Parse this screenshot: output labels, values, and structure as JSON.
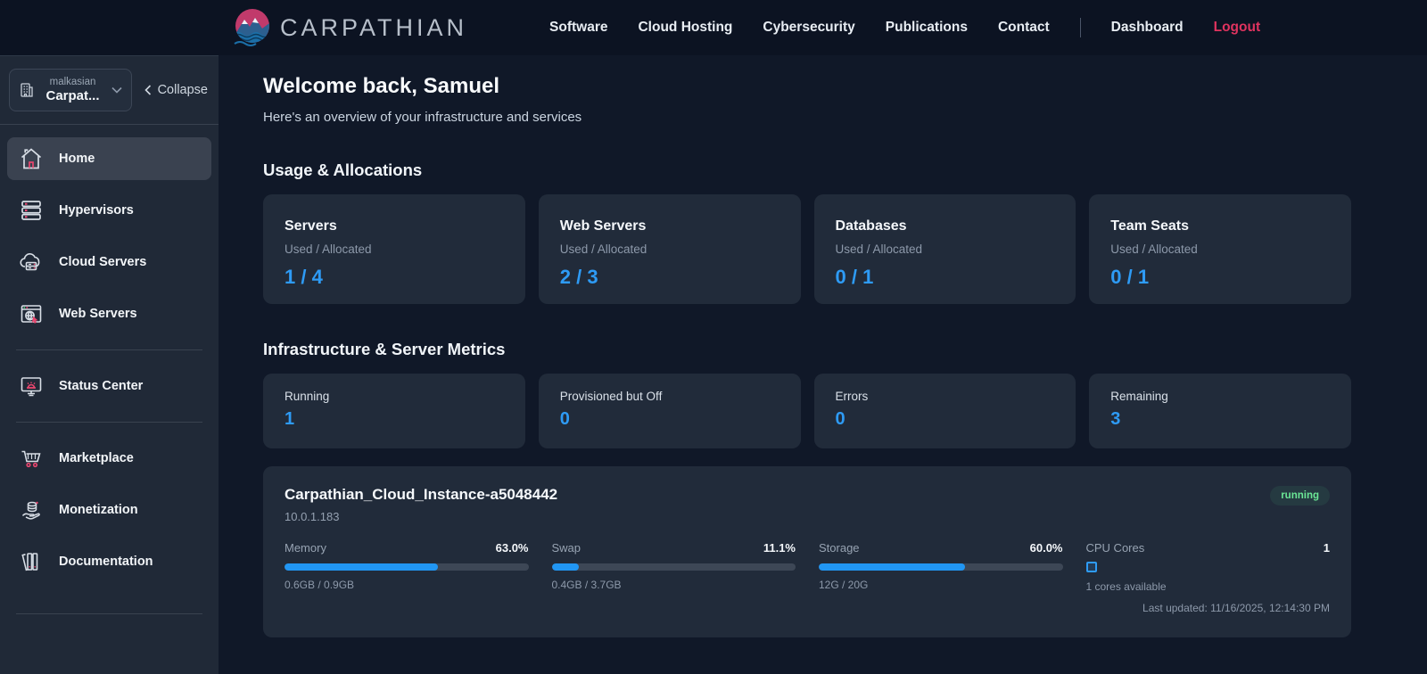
{
  "colors": {
    "accent_blue": "#2e9bf5",
    "accent_pink": "#e0335f",
    "status_green": "#6be796",
    "card_bg": "#212b3a",
    "sidebar_bg": "#202937",
    "topbar_bg": "#0c1322"
  },
  "topbar": {
    "brand": "CARPATHIAN",
    "links": [
      "Software",
      "Cloud Hosting",
      "Cybersecurity",
      "Publications",
      "Contact"
    ],
    "dashboard_label": "Dashboard",
    "logout_label": "Logout"
  },
  "sidebar": {
    "org": {
      "account": "malkasian",
      "name": "Carpat..."
    },
    "collapse_label": "Collapse",
    "items": [
      {
        "label": "Home"
      },
      {
        "label": "Hypervisors"
      },
      {
        "label": "Cloud Servers"
      },
      {
        "label": "Web Servers"
      },
      {
        "label": "Status Center"
      },
      {
        "label": "Marketplace"
      },
      {
        "label": "Monetization"
      },
      {
        "label": "Documentation"
      }
    ]
  },
  "main": {
    "welcome_title": "Welcome back, Samuel",
    "welcome_subtitle": "Here's an overview of your infrastructure and services",
    "usage_section": {
      "title": "Usage & Allocations",
      "cards": [
        {
          "title": "Servers",
          "sub": "Used / Allocated",
          "value": "1 / 4"
        },
        {
          "title": "Web Servers",
          "sub": "Used / Allocated",
          "value": "2 / 3"
        },
        {
          "title": "Databases",
          "sub": "Used / Allocated",
          "value": "0 / 1"
        },
        {
          "title": "Team Seats",
          "sub": "Used / Allocated",
          "value": "0 / 1"
        }
      ]
    },
    "metrics_section": {
      "title": "Infrastructure & Server Metrics",
      "cards": [
        {
          "label": "Running",
          "value": "1"
        },
        {
          "label": "Provisioned but Off",
          "value": "0"
        },
        {
          "label": "Errors",
          "value": "0"
        },
        {
          "label": "Remaining",
          "value": "3"
        }
      ]
    },
    "instance": {
      "name": "Carpathian_Cloud_Instance-a5048442",
      "ip": "10.0.1.183",
      "status": "running",
      "metrics": [
        {
          "label": "Memory",
          "percent": "63.0%",
          "bar_percent": 63.0,
          "detail": "0.6GB / 0.9GB"
        },
        {
          "label": "Swap",
          "percent": "11.1%",
          "bar_percent": 11.1,
          "detail": "0.4GB / 3.7GB"
        },
        {
          "label": "Storage",
          "percent": "60.0%",
          "bar_percent": 60.0,
          "detail": "12G / 20G"
        },
        {
          "label": "CPU Cores",
          "value": "1",
          "detail": "1 cores available"
        }
      ],
      "last_updated": "Last updated: 11/16/2025, 12:14:30 PM"
    }
  }
}
